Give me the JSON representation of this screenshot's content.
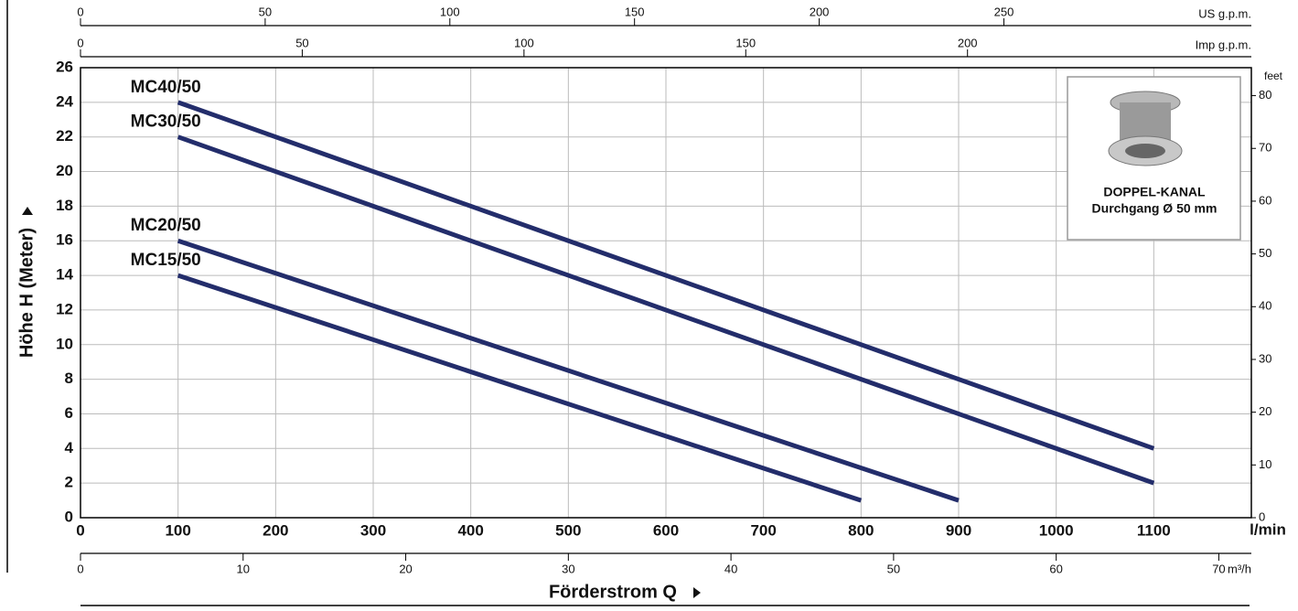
{
  "chart_data": {
    "type": "line",
    "y_label": "Höhe H  (Meter)",
    "x_label": "Förderstrom Q",
    "x_unit": "l/min",
    "xlim": [
      0,
      1200
    ],
    "xticks": [
      0,
      100,
      200,
      300,
      400,
      500,
      600,
      700,
      800,
      900,
      1000,
      1100
    ],
    "ylim": [
      0,
      26
    ],
    "yticks": [
      0,
      2,
      4,
      6,
      8,
      10,
      12,
      14,
      16,
      18,
      20,
      22,
      24,
      26
    ],
    "y2_unit": "feet",
    "y2lim": [
      0,
      85.3
    ],
    "y2ticks": [
      0,
      10,
      20,
      30,
      40,
      50,
      60,
      70,
      80
    ],
    "grid": true,
    "secondary_x_axes": [
      {
        "position": "top",
        "unit": "US g.p.m.",
        "xlim": [
          0,
          317
        ],
        "xticks": [
          0,
          50,
          100,
          150,
          200,
          250
        ]
      },
      {
        "position": "top",
        "unit": "Imp g.p.m.",
        "xlim": [
          0,
          264
        ],
        "xticks": [
          0,
          50,
          100,
          150,
          200
        ]
      },
      {
        "position": "bottom",
        "unit": "m³/h",
        "xlim": [
          0,
          72
        ],
        "xticks": [
          0,
          10,
          20,
          30,
          40,
          50,
          60,
          70
        ]
      }
    ],
    "series": [
      {
        "name": "MC40/50",
        "color": "#232d6b",
        "x": [
          100,
          1100
        ],
        "values": [
          24,
          4
        ]
      },
      {
        "name": "MC30/50",
        "color": "#232d6b",
        "x": [
          100,
          1100
        ],
        "values": [
          22,
          2
        ]
      },
      {
        "name": "MC20/50",
        "color": "#232d6b",
        "x": [
          100,
          900
        ],
        "values": [
          16,
          1
        ]
      },
      {
        "name": "MC15/50",
        "color": "#232d6b",
        "x": [
          100,
          800
        ],
        "values": [
          14,
          1
        ]
      }
    ],
    "inset": {
      "title": "DOPPEL-KANAL",
      "subtitle": "Durchgang Ø 50 mm"
    }
  }
}
